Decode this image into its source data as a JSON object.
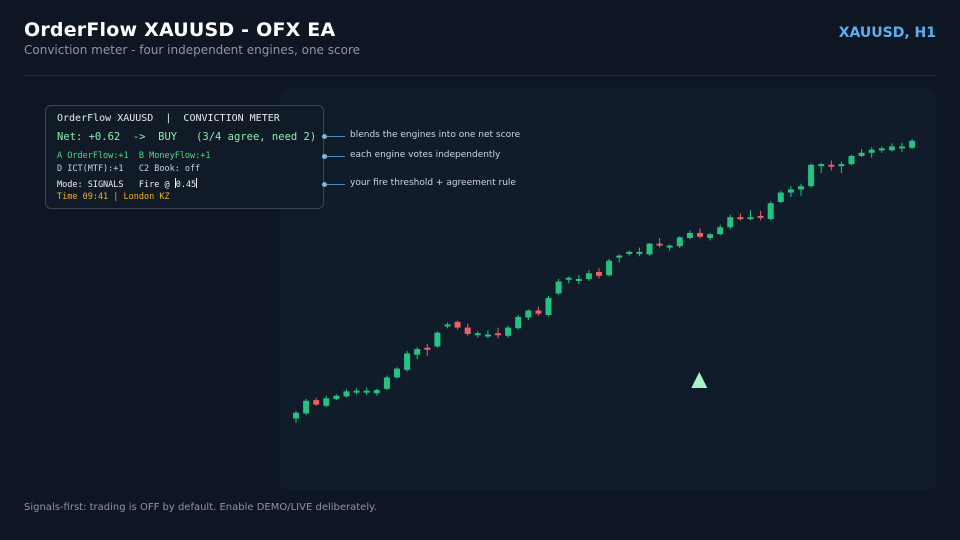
{
  "header": {
    "title": "OrderFlow XAUUSD  -  OFX EA",
    "subtitle": "Conviction meter - four independent engines, one score",
    "symbol_timeframe": "XAUUSD, H1"
  },
  "meter": {
    "title_line": "OrderFlow XAUUSD  |  CONVICTION METER",
    "net_line": "Net: +0.62  ->  BUY   (3/4 agree, need 2)",
    "engines_line1": "A OrderFlow:+1  B MoneyFlow:+1",
    "engines_line2": "D ICT(MTF):+1   C2 Book: off",
    "mode_line": "Mode: SIGNALS   Fire @ ",
    "fire_value": "0.45",
    "time_line": "Time 09:41 | London KZ"
  },
  "annotations": [
    "blends the engines into one net score",
    "each engine votes independently",
    "your fire threshold + agreement rule"
  ],
  "footer_note": "Signals-first: trading is OFF by default. Enable DEMO/LIVE deliberately.",
  "colors": {
    "bull": "#26c281",
    "bear": "#ef5f66",
    "signal_marker": "#a7f3c9",
    "accent": "#5ab0f0"
  },
  "signal_marker": {
    "type": "buy-arrow",
    "candle_index": 33
  },
  "chart_data": {
    "type": "candlestick",
    "candles": [
      {
        "o": 10.0,
        "h": 12.4,
        "l": 8.6,
        "c": 11.8
      },
      {
        "o": 11.6,
        "h": 16.2,
        "l": 11.0,
        "c": 15.6
      },
      {
        "o": 15.8,
        "h": 16.6,
        "l": 14.0,
        "c": 14.4
      },
      {
        "o": 14.0,
        "h": 17.2,
        "l": 13.6,
        "c": 16.4
      },
      {
        "o": 16.2,
        "h": 17.6,
        "l": 15.8,
        "c": 17.2
      },
      {
        "o": 17.0,
        "h": 19.2,
        "l": 16.6,
        "c": 18.6
      },
      {
        "o": 18.6,
        "h": 19.6,
        "l": 17.6,
        "c": 18.8
      },
      {
        "o": 18.6,
        "h": 19.8,
        "l": 17.4,
        "c": 18.8
      },
      {
        "o": 18.0,
        "h": 19.4,
        "l": 17.2,
        "c": 19.0
      },
      {
        "o": 19.4,
        "h": 23.6,
        "l": 19.0,
        "c": 23.0
      },
      {
        "o": 23.0,
        "h": 26.2,
        "l": 22.6,
        "c": 25.8
      },
      {
        "o": 25.4,
        "h": 31.4,
        "l": 24.8,
        "c": 30.6
      },
      {
        "o": 30.2,
        "h": 32.6,
        "l": 28.8,
        "c": 32.0
      },
      {
        "o": 32.4,
        "h": 33.6,
        "l": 29.8,
        "c": 32.2
      },
      {
        "o": 32.8,
        "h": 37.6,
        "l": 32.4,
        "c": 37.2
      },
      {
        "o": 39.2,
        "h": 40.4,
        "l": 38.6,
        "c": 39.8
      },
      {
        "o": 40.6,
        "h": 41.0,
        "l": 38.2,
        "c": 38.8
      },
      {
        "o": 38.8,
        "h": 40.0,
        "l": 36.2,
        "c": 36.8
      },
      {
        "o": 36.4,
        "h": 37.6,
        "l": 35.6,
        "c": 37.0
      },
      {
        "o": 36.6,
        "h": 38.0,
        "l": 35.4,
        "c": 36.6
      },
      {
        "o": 37.0,
        "h": 38.8,
        "l": 35.4,
        "c": 36.4
      },
      {
        "o": 36.2,
        "h": 39.4,
        "l": 35.6,
        "c": 38.8
      },
      {
        "o": 38.6,
        "h": 42.8,
        "l": 38.2,
        "c": 42.2
      },
      {
        "o": 42.0,
        "h": 44.6,
        "l": 41.2,
        "c": 44.2
      },
      {
        "o": 44.2,
        "h": 45.4,
        "l": 42.6,
        "c": 43.2
      },
      {
        "o": 42.8,
        "h": 48.8,
        "l": 42.4,
        "c": 48.2
      },
      {
        "o": 49.6,
        "h": 54.2,
        "l": 49.2,
        "c": 53.4
      },
      {
        "o": 54.2,
        "h": 55.0,
        "l": 52.8,
        "c": 54.6
      },
      {
        "o": 53.6,
        "h": 55.4,
        "l": 52.6,
        "c": 54.2
      },
      {
        "o": 54.2,
        "h": 57.0,
        "l": 53.6,
        "c": 56.0
      },
      {
        "o": 56.4,
        "h": 57.6,
        "l": 54.4,
        "c": 55.2
      },
      {
        "o": 55.4,
        "h": 60.6,
        "l": 55.0,
        "c": 60.0
      },
      {
        "o": 61.0,
        "h": 62.0,
        "l": 59.4,
        "c": 61.6
      },
      {
        "o": 62.2,
        "h": 63.2,
        "l": 61.6,
        "c": 62.8
      },
      {
        "o": 62.4,
        "h": 64.2,
        "l": 61.4,
        "c": 62.8
      },
      {
        "o": 62.0,
        "h": 65.6,
        "l": 61.6,
        "c": 65.4
      },
      {
        "o": 65.4,
        "h": 67.2,
        "l": 64.2,
        "c": 64.8
      },
      {
        "o": 64.4,
        "h": 65.2,
        "l": 63.2,
        "c": 64.8
      },
      {
        "o": 64.6,
        "h": 67.8,
        "l": 64.0,
        "c": 67.4
      },
      {
        "o": 67.2,
        "h": 69.6,
        "l": 66.8,
        "c": 68.8
      },
      {
        "o": 68.8,
        "h": 70.2,
        "l": 67.0,
        "c": 67.6
      },
      {
        "o": 67.2,
        "h": 68.8,
        "l": 66.4,
        "c": 68.4
      },
      {
        "o": 68.4,
        "h": 71.4,
        "l": 68.0,
        "c": 70.6
      },
      {
        "o": 70.6,
        "h": 74.6,
        "l": 70.0,
        "c": 73.8
      },
      {
        "o": 73.8,
        "h": 75.0,
        "l": 72.8,
        "c": 73.6
      },
      {
        "o": 73.6,
        "h": 76.0,
        "l": 72.8,
        "c": 73.8
      },
      {
        "o": 74.2,
        "h": 75.8,
        "l": 72.8,
        "c": 74.0
      },
      {
        "o": 73.2,
        "h": 78.8,
        "l": 72.8,
        "c": 78.2
      },
      {
        "o": 78.6,
        "h": 82.2,
        "l": 78.2,
        "c": 81.6
      },
      {
        "o": 81.6,
        "h": 83.6,
        "l": 80.2,
        "c": 82.6
      },
      {
        "o": 82.6,
        "h": 84.4,
        "l": 80.6,
        "c": 83.6
      },
      {
        "o": 83.6,
        "h": 90.8,
        "l": 83.2,
        "c": 90.4
      },
      {
        "o": 90.2,
        "h": 91.0,
        "l": 87.8,
        "c": 90.6
      },
      {
        "o": 90.4,
        "h": 91.8,
        "l": 88.6,
        "c": 90.2
      },
      {
        "o": 90.0,
        "h": 91.4,
        "l": 87.8,
        "c": 90.6
      },
      {
        "o": 90.6,
        "h": 93.6,
        "l": 90.2,
        "c": 93.2
      },
      {
        "o": 93.2,
        "h": 95.4,
        "l": 92.8,
        "c": 94.2
      },
      {
        "o": 94.2,
        "h": 96.0,
        "l": 92.6,
        "c": 95.2
      },
      {
        "o": 95.2,
        "h": 96.2,
        "l": 94.2,
        "c": 95.6
      },
      {
        "o": 95.0,
        "h": 97.2,
        "l": 94.6,
        "c": 96.2
      },
      {
        "o": 96.0,
        "h": 97.4,
        "l": 94.4,
        "c": 96.2
      },
      {
        "o": 95.8,
        "h": 98.6,
        "l": 95.4,
        "c": 98.0
      }
    ]
  }
}
